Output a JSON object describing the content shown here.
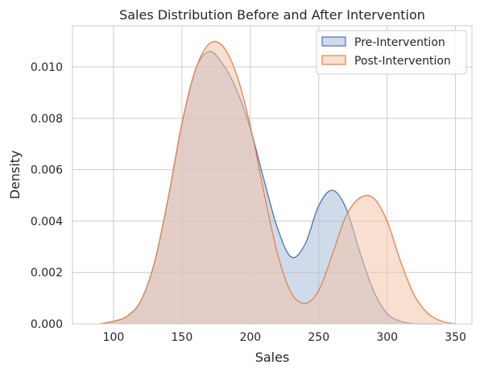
{
  "chart_data": {
    "type": "area",
    "title": "Sales Distribution Before and After Intervention",
    "xlabel": "Sales",
    "ylabel": "Density",
    "xlim": [
      70,
      362
    ],
    "ylim": [
      0,
      0.0116
    ],
    "xticks": [
      "100",
      "150",
      "200",
      "250",
      "300",
      "350"
    ],
    "yticks": [
      "0.000",
      "0.002",
      "0.004",
      "0.006",
      "0.008",
      "0.010"
    ],
    "grid": true,
    "legend_position": "top-right",
    "series": [
      {
        "name": "Pre-Intervention",
        "color": "#4c72b0",
        "fill": "#a8bcd9",
        "x": [
          90,
          100,
          110,
          120,
          130,
          140,
          150,
          160,
          170,
          180,
          190,
          200,
          210,
          220,
          230,
          240,
          250,
          260,
          270,
          280,
          290,
          300,
          310,
          320,
          330,
          340
        ],
        "y": [
          0.0,
          0.0001,
          0.0003,
          0.0009,
          0.0024,
          0.0049,
          0.0078,
          0.0099,
          0.0106,
          0.0101,
          0.0091,
          0.0076,
          0.0056,
          0.0037,
          0.0026,
          0.0031,
          0.0046,
          0.0052,
          0.0045,
          0.0028,
          0.0013,
          0.0004,
          0.0001,
          0.0,
          0.0,
          0.0
        ]
      },
      {
        "name": "Post-Intervention",
        "color": "#dd8452",
        "fill": "#f2c4a8",
        "x": [
          90,
          100,
          110,
          120,
          130,
          140,
          150,
          160,
          170,
          180,
          190,
          200,
          210,
          220,
          230,
          240,
          250,
          260,
          270,
          280,
          290,
          300,
          310,
          320,
          330,
          340,
          350
        ],
        "y": [
          0.0,
          0.0001,
          0.0003,
          0.0009,
          0.0024,
          0.0049,
          0.0078,
          0.0099,
          0.0109,
          0.0108,
          0.0097,
          0.0077,
          0.0051,
          0.0027,
          0.0012,
          0.0008,
          0.0013,
          0.0027,
          0.0042,
          0.0049,
          0.0049,
          0.004,
          0.0024,
          0.0011,
          0.0004,
          0.0001,
          0.0
        ]
      }
    ]
  }
}
